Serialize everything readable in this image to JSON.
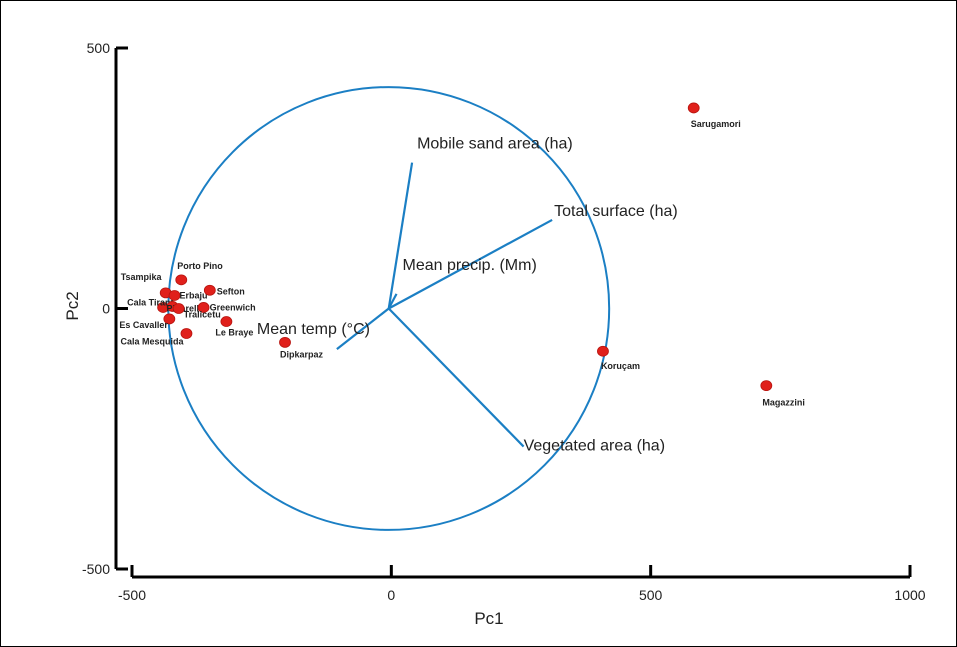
{
  "chart_data": {
    "type": "scatter",
    "title": "",
    "xlabel": "Pc1",
    "ylabel": "Pc2",
    "xlim": [
      -500,
      1000
    ],
    "ylim": [
      -500,
      500
    ],
    "xticks": [
      "-500",
      "0",
      "500",
      "1000"
    ],
    "yticks": [
      "500",
      "0",
      "-500"
    ],
    "circle": {
      "center": [
        -5,
        0
      ],
      "radius": 425
    },
    "points": [
      {
        "label": "Tsampika",
        "x": -435,
        "y": 30
      },
      {
        "label": "Porto Pino",
        "x": -405,
        "y": 55
      },
      {
        "label": "Cala Tirant",
        "x": -440,
        "y": 2
      },
      {
        "label": "Erbaju",
        "x": -418,
        "y": 25
      },
      {
        "label": "Sefton",
        "x": -350,
        "y": 35
      },
      {
        "label": "Pinarello",
        "x": -422,
        "y": 4
      },
      {
        "label": "Greenwich",
        "x": -362,
        "y": 2
      },
      {
        "label": "Tralicetu",
        "x": -410,
        "y": 0
      },
      {
        "label": "Es Cavaller",
        "x": -428,
        "y": -20
      },
      {
        "label": "Le Braye",
        "x": -318,
        "y": -25
      },
      {
        "label": "Cala Mesquida",
        "x": -395,
        "y": -48
      },
      {
        "label": "Dipkarpaz",
        "x": -205,
        "y": -65
      },
      {
        "label": "Koruçam",
        "x": 408,
        "y": -82
      },
      {
        "label": "Magazzini",
        "x": 723,
        "y": -148
      },
      {
        "label": "Sarugamori",
        "x": 583,
        "y": 385
      }
    ],
    "vectors": [
      {
        "label": "Mobile sand area (ha)",
        "x": 40,
        "y": 280
      },
      {
        "label": "Total surface (ha)",
        "x": 310,
        "y": 170
      },
      {
        "label": "Mean precip. (Mm)",
        "x": 10,
        "y": 28
      },
      {
        "label": "Mean temp (°C)",
        "x": -105,
        "y": -78
      },
      {
        "label": "Vegetated area (ha)",
        "x": 255,
        "y": -265
      }
    ],
    "colors": {
      "points": "#e0201b",
      "vectors": "#1b7fc4",
      "circle": "#1b7fc4",
      "axes": "#000000"
    }
  }
}
